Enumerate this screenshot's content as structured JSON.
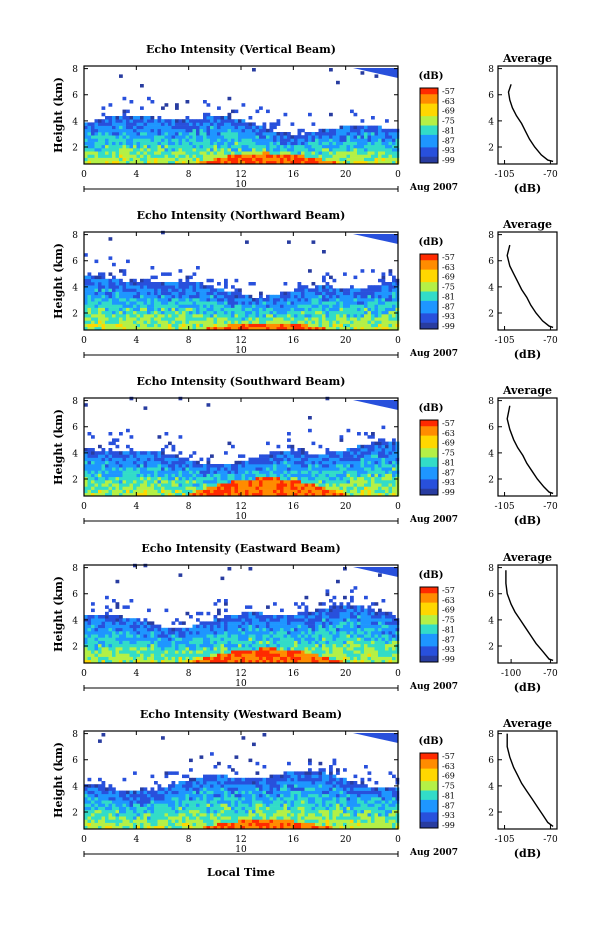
{
  "figure": {
    "date_label": "Aug 2007",
    "day_label": "10",
    "xlabel_bottom": "Local Time",
    "colorbar_unit": "(dB)",
    "colorbar_ticks": [
      "-57",
      "-63",
      "-69",
      "-75",
      "-81",
      "-87",
      "-93",
      "-99"
    ],
    "colorbar_colors": [
      "#ff2a00",
      "#ff8c00",
      "#ffd700",
      "#b4f046",
      "#32dcc8",
      "#1e96ff",
      "#2850dc",
      "#283ca0"
    ],
    "avg_title": "Average",
    "avg_xlabel": "(dB)"
  },
  "chart_data": [
    {
      "type": "heatmap",
      "title": "Echo Intensity (Vertical Beam)",
      "ylabel": "Height (km)",
      "x_ticks": [
        "0",
        "4",
        "8",
        "12",
        "16",
        "20",
        "0"
      ],
      "xlim": [
        0,
        24
      ],
      "y_ticks": [
        "2",
        "4",
        "6",
        "8"
      ],
      "ylim": [
        0.7,
        8.2
      ],
      "cloud_top_km": 3.8,
      "bright_layer_top_km": 1.2,
      "zlim": [
        -99,
        -57
      ],
      "average_profile": {
        "x_ticks": [
          "-105",
          "-70"
        ],
        "xlim": [
          -110,
          -65
        ],
        "ylim": [
          0.7,
          8.2
        ],
        "y_ticks": [
          "2",
          "4",
          "6",
          "8"
        ],
        "points": [
          [
            -100,
            6.8
          ],
          [
            -102,
            6.2
          ],
          [
            -101,
            5.6
          ],
          [
            -99,
            5.0
          ],
          [
            -96,
            4.4
          ],
          [
            -92,
            3.8
          ],
          [
            -89,
            3.2
          ],
          [
            -86,
            2.6
          ],
          [
            -82,
            2.0
          ],
          [
            -77,
            1.4
          ],
          [
            -72,
            1.0
          ],
          [
            -68,
            0.9
          ]
        ]
      }
    },
    {
      "type": "heatmap",
      "title": "Echo Intensity (Northward Beam)",
      "ylabel": "Height (km)",
      "x_ticks": [
        "0",
        "4",
        "8",
        "12",
        "16",
        "20",
        "0"
      ],
      "xlim": [
        0,
        24
      ],
      "y_ticks": [
        "2",
        "4",
        "6",
        "8"
      ],
      "ylim": [
        0.7,
        8.2
      ],
      "cloud_top_km": 4.1,
      "bright_layer_top_km": 1.0,
      "zlim": [
        -99,
        -57
      ],
      "average_profile": {
        "x_ticks": [
          "-105",
          "-70"
        ],
        "xlim": [
          -110,
          -65
        ],
        "ylim": [
          0.7,
          8.2
        ],
        "y_ticks": [
          "2",
          "4",
          "6",
          "8"
        ],
        "points": [
          [
            -101,
            7.2
          ],
          [
            -103,
            6.4
          ],
          [
            -101,
            5.6
          ],
          [
            -98,
            5.0
          ],
          [
            -95,
            4.4
          ],
          [
            -92,
            3.8
          ],
          [
            -88,
            3.2
          ],
          [
            -85,
            2.6
          ],
          [
            -81,
            2.0
          ],
          [
            -76,
            1.4
          ],
          [
            -71,
            1.0
          ],
          [
            -68,
            0.9
          ]
        ]
      }
    },
    {
      "type": "heatmap",
      "title": "Echo Intensity (Southward Beam)",
      "ylabel": "Height (km)",
      "x_ticks": [
        "0",
        "4",
        "8",
        "12",
        "16",
        "20",
        "0"
      ],
      "xlim": [
        0,
        24
      ],
      "y_ticks": [
        "2",
        "4",
        "6",
        "8"
      ],
      "ylim": [
        0.7,
        8.2
      ],
      "cloud_top_km": 4.0,
      "bright_layer_top_km": 1.6,
      "zlim": [
        -99,
        -57
      ],
      "average_profile": {
        "x_ticks": [
          "-105",
          "-70"
        ],
        "xlim": [
          -110,
          -65
        ],
        "ylim": [
          0.7,
          8.2
        ],
        "y_ticks": [
          "2",
          "4",
          "6",
          "8"
        ],
        "points": [
          [
            -101,
            7.6
          ],
          [
            -103,
            6.6
          ],
          [
            -101,
            5.8
          ],
          [
            -98,
            5.0
          ],
          [
            -95,
            4.4
          ],
          [
            -91,
            3.8
          ],
          [
            -88,
            3.2
          ],
          [
            -84,
            2.6
          ],
          [
            -80,
            2.0
          ],
          [
            -75,
            1.4
          ],
          [
            -71,
            1.0
          ],
          [
            -68,
            0.9
          ]
        ]
      }
    },
    {
      "type": "heatmap",
      "title": "Echo Intensity (Eastward Beam)",
      "ylabel": "Height (km)",
      "x_ticks": [
        "0",
        "4",
        "8",
        "12",
        "16",
        "20",
        "0"
      ],
      "xlim": [
        0,
        24
      ],
      "y_ticks": [
        "2",
        "4",
        "6",
        "8"
      ],
      "ylim": [
        0.7,
        8.2
      ],
      "cloud_top_km": 4.3,
      "bright_layer_top_km": 1.4,
      "zlim": [
        -99,
        -57
      ],
      "average_profile": {
        "x_ticks": [
          "-100",
          "-70"
        ],
        "xlim": [
          -110,
          -65
        ],
        "ylim": [
          0.7,
          8.2
        ],
        "y_ticks": [
          "2",
          "4",
          "6",
          "8"
        ],
        "points": [
          [
            -104,
            7.8
          ],
          [
            -104,
            6.8
          ],
          [
            -103,
            6.0
          ],
          [
            -100,
            5.2
          ],
          [
            -97,
            4.6
          ],
          [
            -93,
            4.0
          ],
          [
            -89,
            3.4
          ],
          [
            -85,
            2.8
          ],
          [
            -81,
            2.2
          ],
          [
            -76,
            1.6
          ],
          [
            -71,
            1.0
          ],
          [
            -68,
            0.9
          ]
        ]
      }
    },
    {
      "type": "heatmap",
      "title": "Echo Intensity (Westward Beam)",
      "ylabel": "Height (km)",
      "x_ticks": [
        "0",
        "4",
        "8",
        "12",
        "16",
        "20",
        "0"
      ],
      "xlim": [
        0,
        24
      ],
      "y_ticks": [
        "2",
        "4",
        "6",
        "8"
      ],
      "ylim": [
        0.7,
        8.2
      ],
      "cloud_top_km": 4.4,
      "bright_layer_top_km": 1.1,
      "zlim": [
        -99,
        -57
      ],
      "average_profile": {
        "x_ticks": [
          "-105",
          "-70"
        ],
        "xlim": [
          -110,
          -65
        ],
        "ylim": [
          0.7,
          8.2
        ],
        "y_ticks": [
          "2",
          "4",
          "6",
          "8"
        ],
        "points": [
          [
            -103,
            8.0
          ],
          [
            -103,
            7.0
          ],
          [
            -101,
            6.2
          ],
          [
            -98,
            5.4
          ],
          [
            -95,
            4.8
          ],
          [
            -92,
            4.2
          ],
          [
            -88,
            3.6
          ],
          [
            -84,
            3.0
          ],
          [
            -80,
            2.4
          ],
          [
            -76,
            1.8
          ],
          [
            -72,
            1.2
          ],
          [
            -68,
            0.9
          ]
        ]
      }
    }
  ]
}
